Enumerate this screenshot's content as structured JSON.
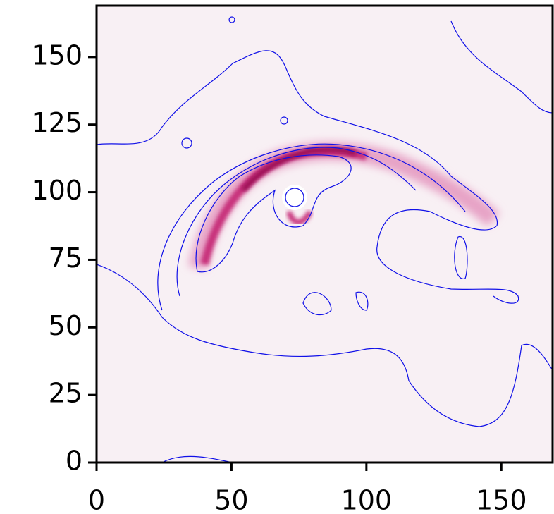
{
  "chart_data": {
    "type": "image",
    "xlim": [
      0,
      169
    ],
    "ylim": [
      0,
      169
    ],
    "xticks": [
      0,
      50,
      100,
      150
    ],
    "yticks": [
      0,
      25,
      50,
      75,
      100,
      125,
      150
    ]
  }
}
